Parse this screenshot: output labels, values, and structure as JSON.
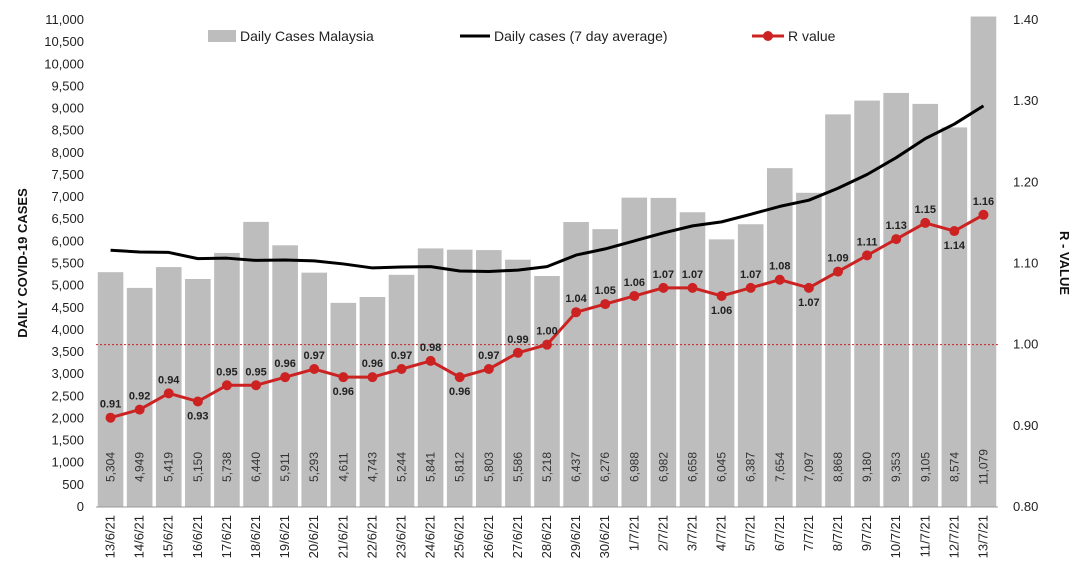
{
  "chart_data": {
    "type": "bar",
    "categories": [
      "13/6/21",
      "14/6/21",
      "15/6/21",
      "16/6/21",
      "17/6/21",
      "18/6/21",
      "19/6/21",
      "20/6/21",
      "21/6/21",
      "22/6/21",
      "23/6/21",
      "24/6/21",
      "25/6/21",
      "26/6/21",
      "27/6/21",
      "28/6/21",
      "29/6/21",
      "30/6/21",
      "1/7/21",
      "2/7/21",
      "3/7/21",
      "4/7/21",
      "5/7/21",
      "6/7/21",
      "7/7/21",
      "8/7/21",
      "9/7/21",
      "10/7/21",
      "11/7/21",
      "12/7/21",
      "13/7/21"
    ],
    "series": [
      {
        "name": "Daily Cases Malaysia",
        "type": "bar",
        "axis": "left",
        "color": "#bdbdbd",
        "values": [
          5304,
          4949,
          5419,
          5150,
          5738,
          6440,
          5911,
          5293,
          4611,
          4743,
          5244,
          5841,
          5812,
          5803,
          5586,
          5218,
          6437,
          6276,
          6988,
          6982,
          6658,
          6045,
          6387,
          7654,
          7097,
          8868,
          9180,
          9353,
          9105,
          8574,
          11079
        ],
        "value_labels": [
          "5,304",
          "4,949",
          "5,419",
          "5,150",
          "5,738",
          "6,440",
          "5,911",
          "5,293",
          "4,611",
          "4,743",
          "5,244",
          "5,841",
          "5,812",
          "5,803",
          "5,586",
          "5,218",
          "6,437",
          "6,276",
          "6,988",
          "6,982",
          "6,658",
          "6,045",
          "6,387",
          "7,654",
          "7,097",
          "8,868",
          "9,180",
          "9,353",
          "9,105",
          "8,574",
          "11,079"
        ]
      },
      {
        "name": "Daily cases (7 day average)",
        "type": "line",
        "axis": "left",
        "color": "#000000",
        "values": [
          5800,
          5760,
          5750,
          5610,
          5620,
          5570,
          5580,
          5560,
          5490,
          5400,
          5420,
          5430,
          5330,
          5320,
          5350,
          5430,
          5690,
          5830,
          6010,
          6190,
          6350,
          6440,
          6610,
          6790,
          6930,
          7200,
          7510,
          7890,
          8320,
          8650,
          9060
        ]
      },
      {
        "name": "R value",
        "type": "line",
        "axis": "right",
        "color": "#cc2222",
        "values": [
          0.91,
          0.92,
          0.94,
          0.93,
          0.95,
          0.95,
          0.96,
          0.97,
          0.96,
          0.96,
          0.97,
          0.98,
          0.96,
          0.97,
          0.99,
          1.0,
          1.04,
          1.05,
          1.06,
          1.07,
          1.07,
          1.06,
          1.07,
          1.08,
          1.07,
          1.09,
          1.11,
          1.13,
          1.15,
          1.14,
          1.16
        ],
        "value_labels": [
          "0.91",
          "0.92",
          "0.94",
          "0.93",
          "0.95",
          "0.95",
          "0.96",
          "0.97",
          "0.96",
          "0.96",
          "0.97",
          "0.98",
          "0.96",
          "0.97",
          "0.99",
          "1.00",
          "1.04",
          "1.05",
          "1.06",
          "1.07",
          "1.07",
          "1.06",
          "1.07",
          "1.08",
          "1.07",
          "1.09",
          "1.11",
          "1.13",
          "1.15",
          "1.14",
          "1.16"
        ]
      }
    ],
    "reference_line": {
      "axis": "right",
      "value": 1.0,
      "color": "#cc2222",
      "style": "dotted"
    },
    "ylabel": "DAILY COVID-19 CASES",
    "y2label": "R - VALUE",
    "xlabel": "",
    "title": "",
    "ylim": [
      0,
      11000
    ],
    "y2lim": [
      0.8,
      1.4
    ],
    "yticks": [
      "0",
      "500",
      "1,000",
      "1,500",
      "2,000",
      "2,500",
      "3,000",
      "3,500",
      "4,000",
      "4,500",
      "5,000",
      "5,500",
      "6,000",
      "6,500",
      "7,000",
      "7,500",
      "8,000",
      "8,500",
      "9,000",
      "9,500",
      "10,000",
      "10,500",
      "11,000"
    ],
    "y2ticks": [
      "0.80",
      "0.90",
      "1.00",
      "1.10",
      "1.20",
      "1.30",
      "1.40"
    ],
    "legend": {
      "position": "top",
      "entries": [
        "Daily Cases Malaysia",
        "Daily cases (7 day average)",
        "R value"
      ]
    },
    "grid": false
  }
}
